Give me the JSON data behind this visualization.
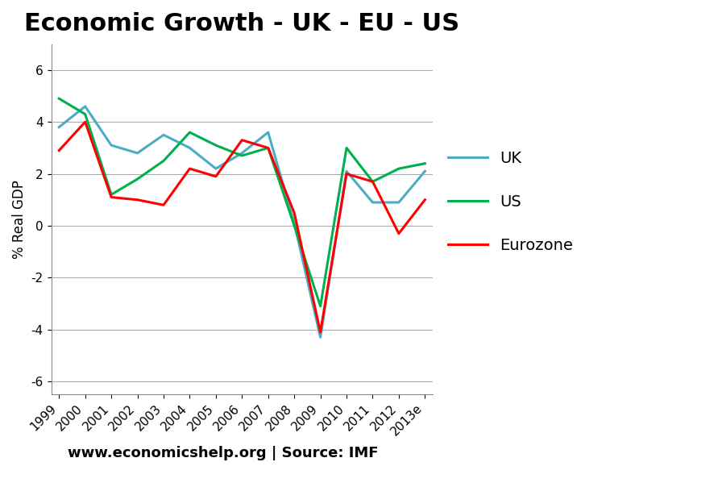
{
  "title": "Economic Growth - UK - EU - US",
  "ylabel": "% Real GDP",
  "footnote": "www.economicshelp.org | Source: IMF",
  "years": [
    "1999",
    "2000",
    "2001",
    "2002",
    "2003",
    "2004",
    "2005",
    "2006",
    "2007",
    "2008",
    "2009",
    "2010",
    "2011",
    "2012",
    "2013e"
  ],
  "UK": [
    3.8,
    4.6,
    3.1,
    2.8,
    3.5,
    3.0,
    2.2,
    2.8,
    3.6,
    0.1,
    -4.3,
    2.1,
    0.9,
    0.9,
    2.1
  ],
  "US": [
    4.9,
    4.3,
    1.2,
    1.8,
    2.5,
    3.6,
    3.1,
    2.7,
    3.0,
    0.0,
    -3.1,
    3.0,
    1.7,
    2.2,
    2.4
  ],
  "Eurozone": [
    2.9,
    4.0,
    1.1,
    1.0,
    0.8,
    2.2,
    1.9,
    3.3,
    3.0,
    0.5,
    -4.1,
    2.0,
    1.7,
    -0.3,
    1.0
  ],
  "UK_color": "#4bacc6",
  "US_color": "#00b050",
  "EZ_color": "#ff0000",
  "ylim": [
    -6.5,
    7.0
  ],
  "yticks": [
    -6,
    -4,
    -2,
    0,
    2,
    4,
    6
  ],
  "bg_color": "#ffffff",
  "grid_color": "#aaaaaa",
  "linewidth": 2.2,
  "title_fontsize": 22,
  "label_fontsize": 12,
  "tick_fontsize": 11,
  "footnote_fontsize": 13
}
